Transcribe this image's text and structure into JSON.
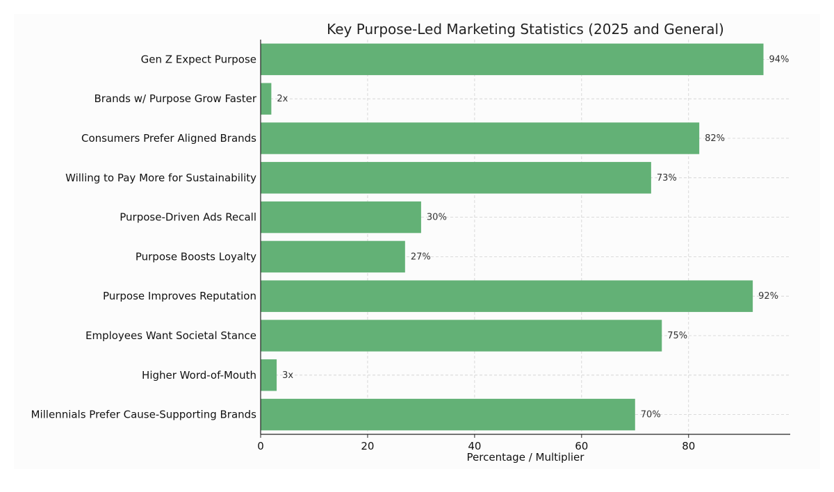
{
  "chart_data": {
    "type": "bar",
    "orientation": "horizontal",
    "title": "Key Purpose-Led Marketing Statistics (2025 and General)",
    "xlabel": "Percentage / Multiplier",
    "ylabel": "",
    "xlim": [
      0,
      99
    ],
    "xticks": [
      0,
      20,
      40,
      60,
      80
    ],
    "grid": true,
    "bar_color": "#63b176",
    "categories": [
      "Gen Z Expect Purpose",
      "Brands w/ Purpose Grow Faster",
      "Consumers Prefer Aligned Brands",
      "Willing to Pay More for Sustainability",
      "Purpose-Driven Ads Recall",
      "Purpose Boosts Loyalty",
      "Purpose Improves Reputation",
      "Employees Want Societal Stance",
      "Higher Word-of-Mouth",
      "Millennials Prefer Cause-Supporting Brands"
    ],
    "values": [
      94,
      2,
      82,
      73,
      30,
      27,
      92,
      75,
      3,
      70
    ],
    "value_labels": [
      "94%",
      "2x",
      "82%",
      "73%",
      "30%",
      "27%",
      "92%",
      "75%",
      "3x",
      "70%"
    ]
  }
}
